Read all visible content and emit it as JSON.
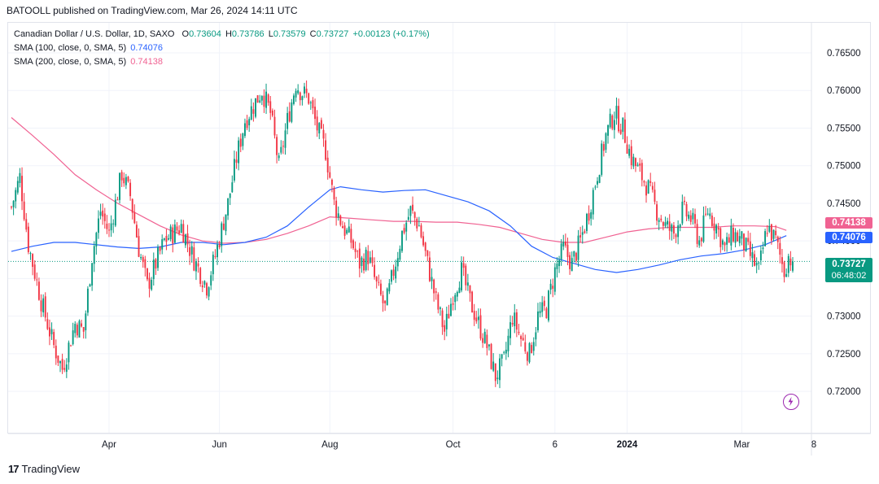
{
  "header": {
    "publisher_line": "BATOOLL published on TradingView.com, Mar 26, 2024 14:11 UTC"
  },
  "legend": {
    "symbol": "Canadian Dollar / U.S. Dollar, 1D, SAXO",
    "ohlc": {
      "o_label": "O",
      "o": "0.73604",
      "h_label": "H",
      "h": "0.73786",
      "l_label": "L",
      "l": "0.73579",
      "c_label": "C",
      "c": "0.73727",
      "change": "+0.00123 (+0.17%)"
    },
    "sma100": {
      "label": "SMA (100, close, 0, SMA, 5)",
      "value": "0.74076"
    },
    "sma200": {
      "label": "SMA (200, close, 0, SMA, 5)",
      "value": "0.74138"
    }
  },
  "price_labels": {
    "sma200": "0.74138",
    "sma100": "0.74076",
    "last": "0.73727",
    "countdown": "06:48:02"
  },
  "footer": {
    "brand": "TradingView",
    "logo": "17"
  },
  "colors": {
    "up": "#089981",
    "down": "#f23645",
    "sma100": "#2962ff",
    "sma200": "#f06292",
    "grid": "#f0f3fa",
    "text": "#131722"
  },
  "icons": {
    "bolt": "lightning-bolt-icon"
  },
  "chart_data": {
    "type": "candlestick",
    "title": "Canadian Dollar / U.S. Dollar, 1D, SAXO",
    "y_ticks": [
      "0.76500",
      "0.76000",
      "0.75500",
      "0.75000",
      "0.74500",
      "0.74000",
      "0.73500",
      "0.73000",
      "0.72500",
      "0.72000"
    ],
    "x_ticks": [
      "Apr",
      "Jun",
      "Aug",
      "Oct",
      "6",
      "2024",
      "Mar",
      "8"
    ],
    "ylim": [
      0.7145,
      0.769
    ],
    "last_price": 0.73727,
    "close_path": [
      [
        0,
        0.7445
      ],
      [
        4,
        0.7485
      ],
      [
        8,
        0.7395
      ],
      [
        14,
        0.732
      ],
      [
        20,
        0.726
      ],
      [
        24,
        0.723
      ],
      [
        30,
        0.729
      ],
      [
        34,
        0.728
      ],
      [
        38,
        0.738
      ],
      [
        42,
        0.744
      ],
      [
        46,
        0.741
      ],
      [
        52,
        0.749
      ],
      [
        56,
        0.746
      ],
      [
        60,
        0.739
      ],
      [
        64,
        0.734
      ],
      [
        68,
        0.737
      ],
      [
        72,
        0.74
      ],
      [
        76,
        0.741
      ],
      [
        80,
        0.742
      ],
      [
        86,
        0.7375
      ],
      [
        92,
        0.734
      ],
      [
        96,
        0.738
      ],
      [
        102,
        0.745
      ],
      [
        106,
        0.751
      ],
      [
        110,
        0.756
      ],
      [
        114,
        0.758
      ],
      [
        118,
        0.76
      ],
      [
        122,
        0.757
      ],
      [
        126,
        0.75
      ],
      [
        130,
        0.756
      ],
      [
        134,
        0.761
      ],
      [
        136,
        0.76
      ],
      [
        140,
        0.759
      ],
      [
        144,
        0.755
      ],
      [
        148,
        0.752
      ],
      [
        152,
        0.745
      ],
      [
        156,
        0.742
      ],
      [
        160,
        0.74
      ],
      [
        164,
        0.737
      ],
      [
        168,
        0.738
      ],
      [
        172,
        0.734
      ],
      [
        176,
        0.731
      ],
      [
        180,
        0.736
      ],
      [
        184,
        0.741
      ],
      [
        188,
        0.744
      ],
      [
        192,
        0.742
      ],
      [
        196,
        0.737
      ],
      [
        200,
        0.732
      ],
      [
        204,
        0.728
      ],
      [
        208,
        0.733
      ],
      [
        212,
        0.736
      ],
      [
        216,
        0.732
      ],
      [
        220,
        0.729
      ],
      [
        224,
        0.726
      ],
      [
        228,
        0.722
      ],
      [
        232,
        0.724
      ],
      [
        236,
        0.73
      ],
      [
        240,
        0.727
      ],
      [
        244,
        0.725
      ],
      [
        248,
        0.73
      ],
      [
        252,
        0.731
      ],
      [
        256,
        0.736
      ],
      [
        260,
        0.739
      ],
      [
        264,
        0.737
      ],
      [
        268,
        0.74
      ],
      [
        272,
        0.744
      ],
      [
        276,
        0.749
      ],
      [
        280,
        0.754
      ],
      [
        284,
        0.757
      ],
      [
        288,
        0.755
      ],
      [
        292,
        0.751
      ],
      [
        296,
        0.749
      ],
      [
        300,
        0.747
      ],
      [
        304,
        0.744
      ],
      [
        308,
        0.742
      ],
      [
        312,
        0.741
      ],
      [
        316,
        0.744
      ],
      [
        320,
        0.743
      ],
      [
        324,
        0.74
      ],
      [
        328,
        0.744
      ],
      [
        332,
        0.742
      ],
      [
        336,
        0.739
      ],
      [
        340,
        0.741
      ],
      [
        344,
        0.74
      ],
      [
        348,
        0.738
      ],
      [
        352,
        0.736
      ],
      [
        356,
        0.742
      ],
      [
        360,
        0.74
      ],
      [
        364,
        0.736
      ],
      [
        366,
        0.738
      ],
      [
        368,
        0.7373
      ]
    ],
    "sma100_path": [
      [
        0,
        0.7386
      ],
      [
        10,
        0.7393
      ],
      [
        20,
        0.7398
      ],
      [
        30,
        0.7398
      ],
      [
        40,
        0.7395
      ],
      [
        50,
        0.7392
      ],
      [
        60,
        0.739
      ],
      [
        70,
        0.7392
      ],
      [
        80,
        0.7398
      ],
      [
        90,
        0.7398
      ],
      [
        100,
        0.7395
      ],
      [
        110,
        0.7398
      ],
      [
        120,
        0.7405
      ],
      [
        130,
        0.742
      ],
      [
        140,
        0.7445
      ],
      [
        150,
        0.7468
      ],
      [
        155,
        0.7472
      ],
      [
        165,
        0.7468
      ],
      [
        175,
        0.7465
      ],
      [
        185,
        0.7467
      ],
      [
        195,
        0.7468
      ],
      [
        205,
        0.746
      ],
      [
        215,
        0.7452
      ],
      [
        225,
        0.744
      ],
      [
        235,
        0.742
      ],
      [
        245,
        0.7393
      ],
      [
        255,
        0.7378
      ],
      [
        265,
        0.737
      ],
      [
        275,
        0.7362
      ],
      [
        285,
        0.7358
      ],
      [
        295,
        0.7362
      ],
      [
        305,
        0.7368
      ],
      [
        315,
        0.7375
      ],
      [
        325,
        0.738
      ],
      [
        335,
        0.7383
      ],
      [
        345,
        0.7388
      ],
      [
        355,
        0.7395
      ],
      [
        365,
        0.7407
      ]
    ],
    "sma200_path": [
      [
        0,
        0.7564
      ],
      [
        10,
        0.754
      ],
      [
        20,
        0.7515
      ],
      [
        30,
        0.7488
      ],
      [
        40,
        0.7468
      ],
      [
        50,
        0.745
      ],
      [
        60,
        0.7435
      ],
      [
        70,
        0.742
      ],
      [
        80,
        0.7408
      ],
      [
        90,
        0.74
      ],
      [
        100,
        0.7397
      ],
      [
        110,
        0.7398
      ],
      [
        120,
        0.7402
      ],
      [
        130,
        0.741
      ],
      [
        140,
        0.742
      ],
      [
        150,
        0.7432
      ],
      [
        160,
        0.743
      ],
      [
        170,
        0.7428
      ],
      [
        180,
        0.7426
      ],
      [
        190,
        0.7426
      ],
      [
        200,
        0.7425
      ],
      [
        210,
        0.7425
      ],
      [
        220,
        0.7422
      ],
      [
        230,
        0.7418
      ],
      [
        240,
        0.741
      ],
      [
        250,
        0.7402
      ],
      [
        260,
        0.7398
      ],
      [
        270,
        0.7398
      ],
      [
        280,
        0.7405
      ],
      [
        290,
        0.7412
      ],
      [
        300,
        0.7416
      ],
      [
        310,
        0.7418
      ],
      [
        320,
        0.7418
      ],
      [
        330,
        0.7418
      ],
      [
        340,
        0.742
      ],
      [
        350,
        0.742
      ],
      [
        360,
        0.7419
      ],
      [
        365,
        0.7414
      ]
    ]
  }
}
